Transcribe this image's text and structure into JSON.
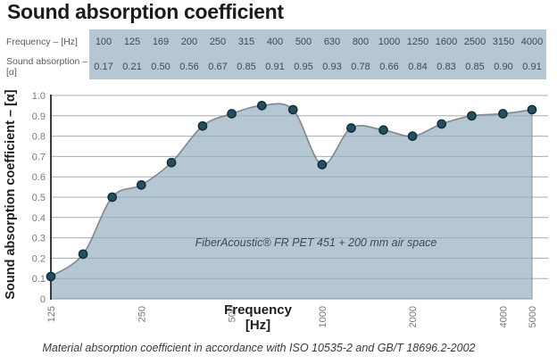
{
  "title": "Sound absorption coefficient",
  "table": {
    "row1_label": "Frequency – [Hz]",
    "row2_label": "Sound absorption – [α]",
    "frequencies": [
      "100",
      "125",
      "169",
      "200",
      "250",
      "315",
      "400",
      "500",
      "630",
      "800",
      "1000",
      "1250",
      "1600",
      "2500",
      "3150",
      "4000"
    ],
    "absorption": [
      "0.17",
      "0.21",
      "0.50",
      "0.56",
      "0.67",
      "0.85",
      "0.91",
      "0.95",
      "0.93",
      "0.78",
      "0.66",
      "0.84",
      "0.83",
      "0.85",
      "0.90",
      "0.91"
    ]
  },
  "chart_data": {
    "type": "area",
    "title": "Sound absorption coefficient",
    "xlabel": "Frequency",
    "xlabel_unit": "[Hz]",
    "ylabel": "Sound absorption coefficient – [α]",
    "x_scale": "log",
    "xlim": [
      125,
      5000
    ],
    "ylim": [
      0,
      1.0
    ],
    "x_ticks": [
      125,
      250,
      500,
      1000,
      2000,
      4000,
      5000
    ],
    "y_ticks": [
      0,
      0.1,
      0.2,
      0.3,
      0.4,
      0.5,
      0.6,
      0.7,
      0.8,
      0.9,
      1.0
    ],
    "grid": "horizontal",
    "annotation": "FiberAcoustic® FR PET 451 + 200 mm air space",
    "series": [
      {
        "name": "FiberAcoustic FR PET 451 + 200 mm air space",
        "x": [
          125,
          160,
          200,
          250,
          315,
          400,
          500,
          630,
          800,
          1000,
          1250,
          1600,
          2000,
          2500,
          3150,
          4000,
          5000
        ],
        "y": [
          0.11,
          0.22,
          0.5,
          0.56,
          0.67,
          0.85,
          0.91,
          0.95,
          0.93,
          0.66,
          0.84,
          0.83,
          0.8,
          0.86,
          0.9,
          0.91,
          0.93
        ]
      }
    ]
  },
  "caption": "Material absorption coefficient in accordance with ISO 10535-2 and GB/T 18696.2-2002",
  "colors": {
    "panel_fill": "#b5c7d3",
    "area_fill": "#b5c7d3",
    "area_edge": "#8796a1",
    "line": "#8a8a8a",
    "dot_fill": "#234f60",
    "dot_stroke": "#122f3a",
    "grid": "#c7c9cb",
    "grid_over_fill": "rgba(70,95,115,0.25)",
    "axis": "#3c3c3c",
    "tick_text": "#787878",
    "label_text": "#1e1e1e"
  }
}
